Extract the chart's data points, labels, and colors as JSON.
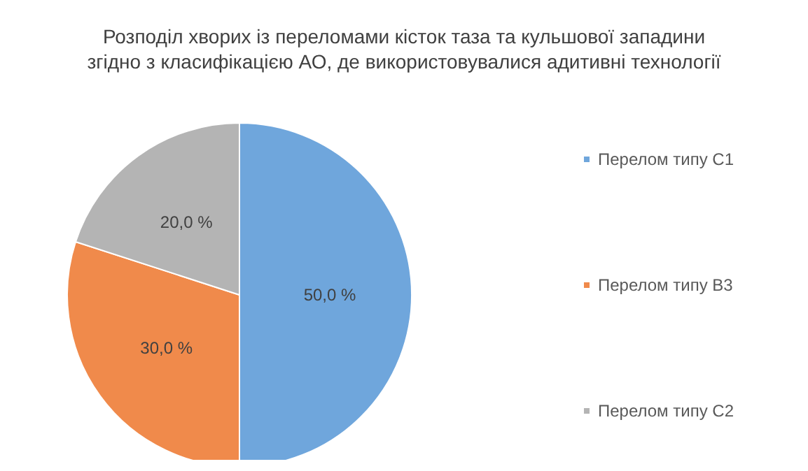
{
  "chart_data": {
    "type": "pie",
    "title": "Розподіл хворих із переломами кісток таза та кульшової западини\nзгідно з класифікацією АО, де використовувалися адитивні технології",
    "categories": [
      "Перелом типу С1",
      "Перелом типу В3",
      "Перелом типу С2"
    ],
    "values": [
      50,
      30,
      20
    ],
    "colors": [
      "#6fa6dc",
      "#f08a4b",
      "#b4b4b4"
    ],
    "value_labels": [
      "50,0 %",
      "30,0 %",
      "20,0 %"
    ],
    "legend": "right"
  }
}
